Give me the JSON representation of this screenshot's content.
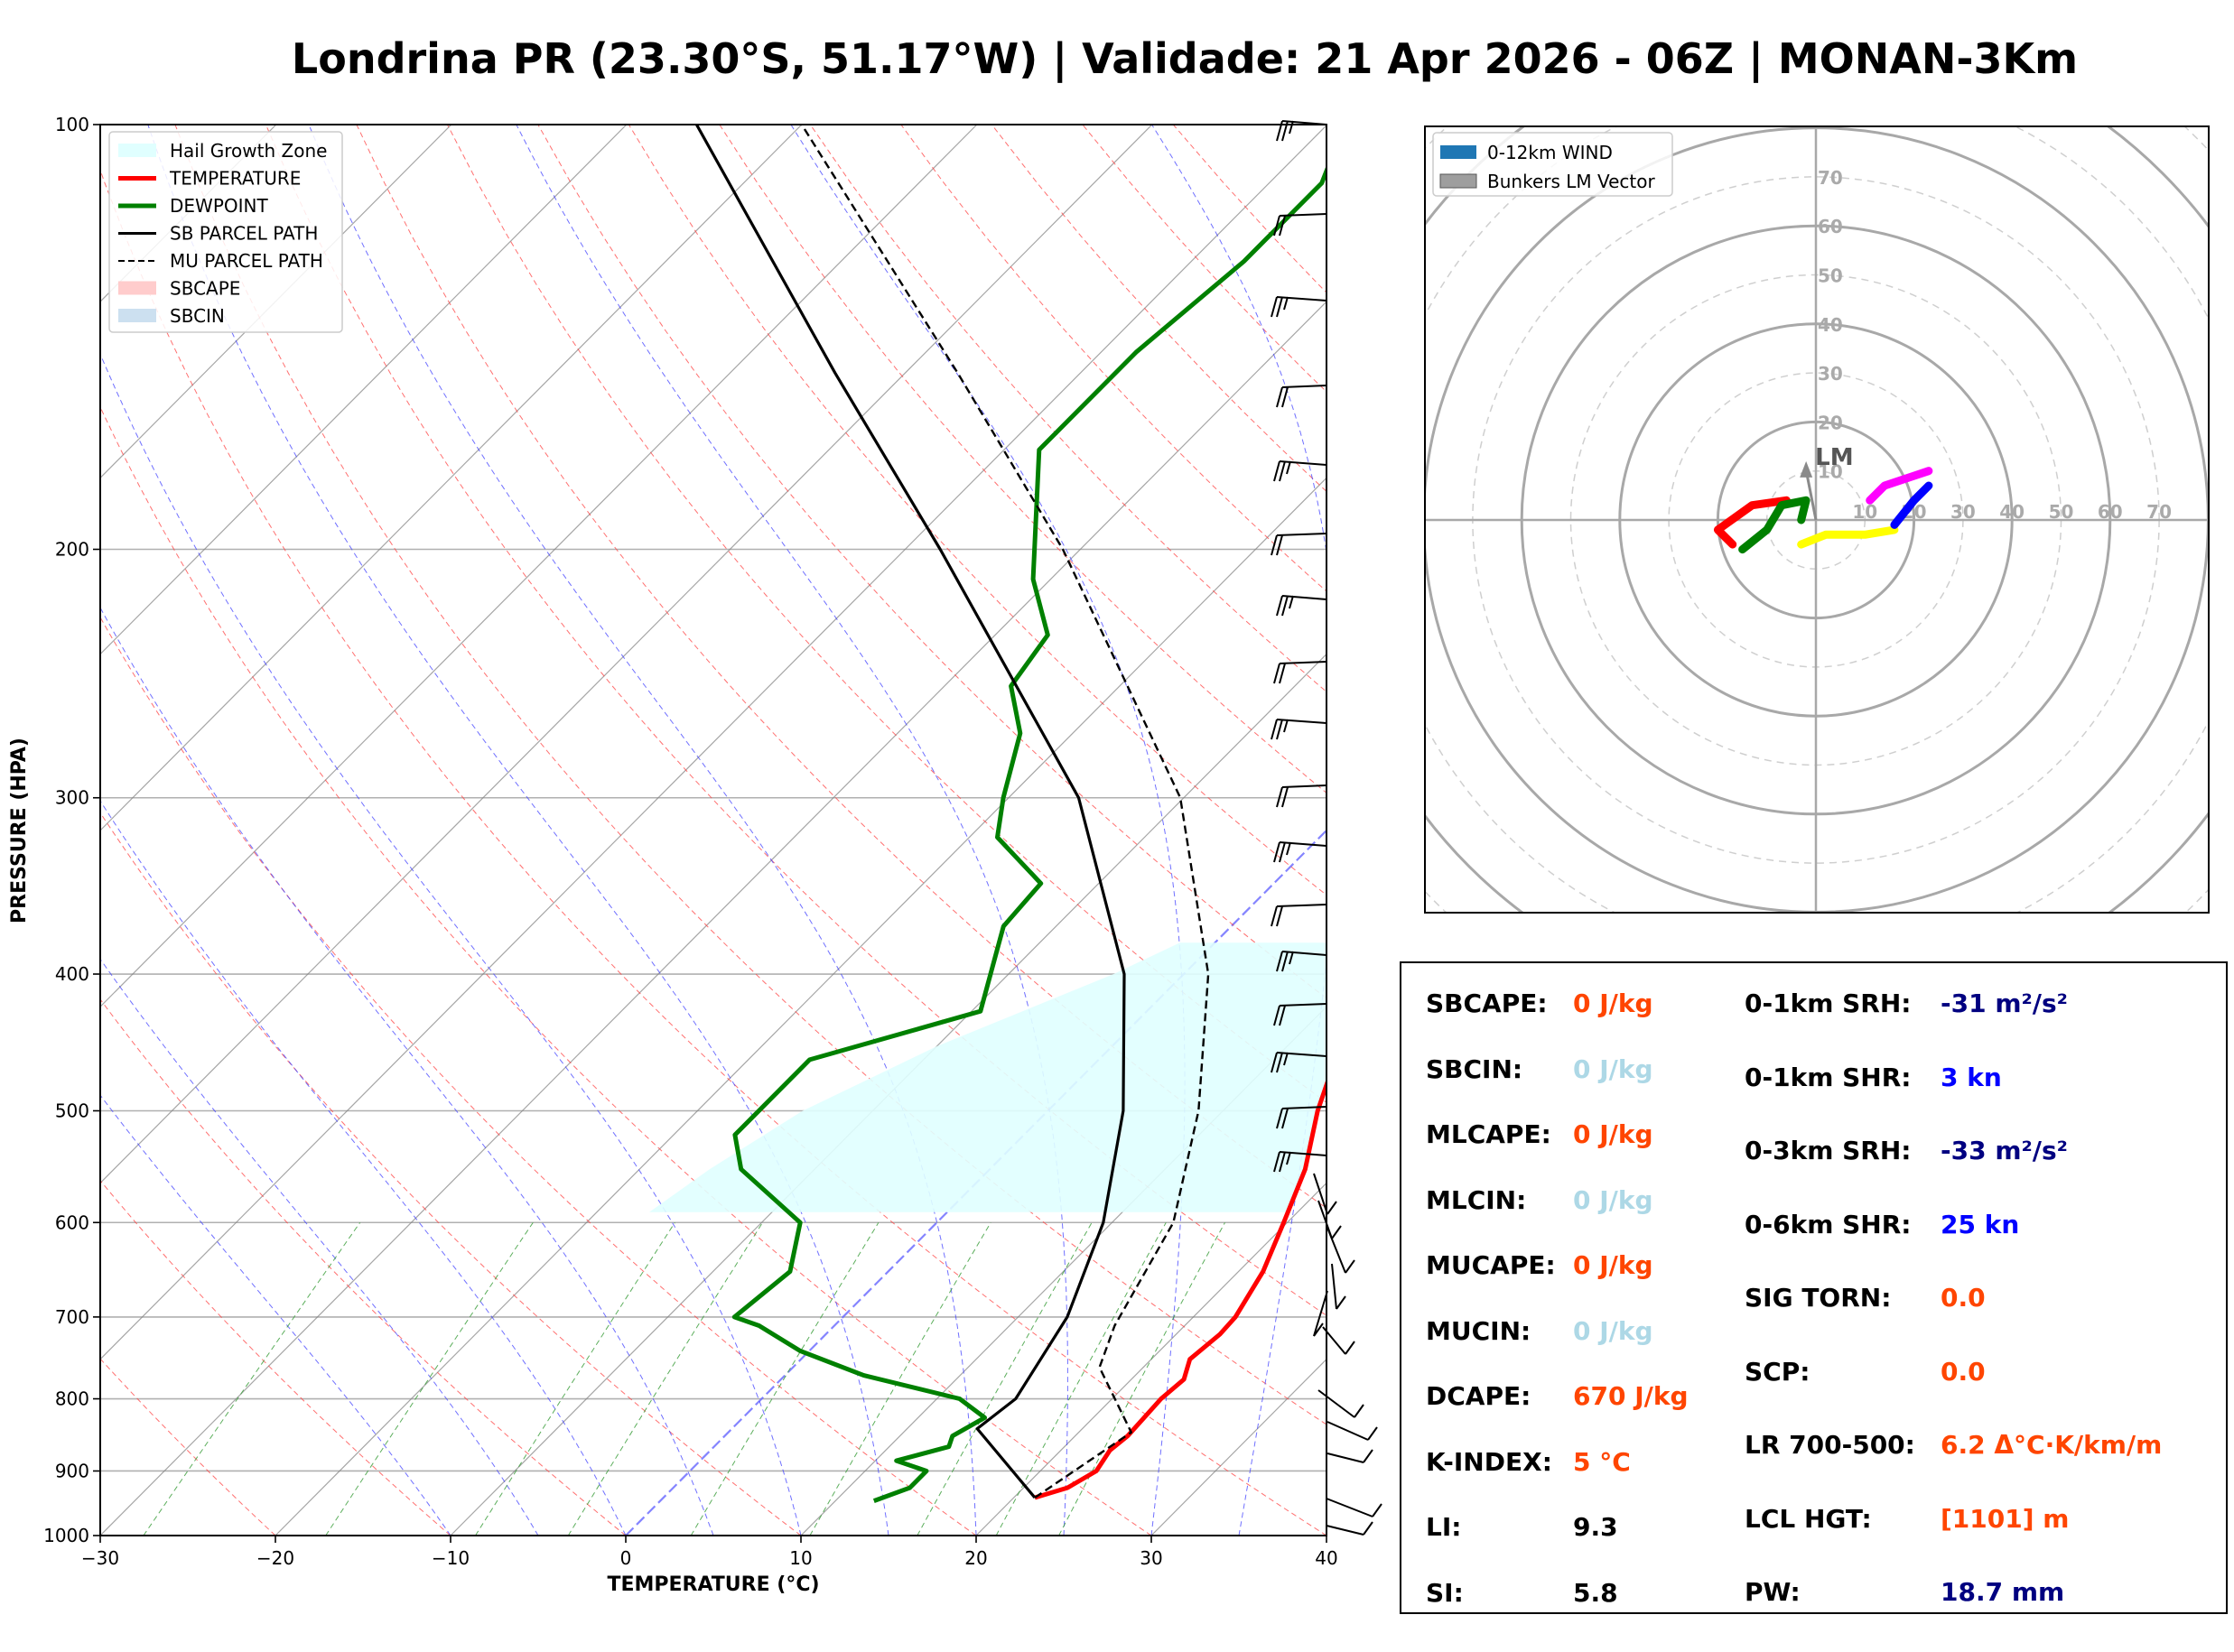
{
  "title": "Londrina PR (23.30°S, 51.17°W) | Validade: 21 Apr 2026 - 06Z | MONAN-3Km",
  "chart_data": [
    {
      "type": "line",
      "subtype": "skew-T log-P",
      "xlabel": "TEMPERATURE (°C)",
      "ylabel": "PRESSURE (HPA)",
      "xlim": [
        -30,
        40
      ],
      "ylim": [
        1000,
        100
      ],
      "y_scale": "log",
      "x_ticks": [
        "−30",
        "−20",
        "−10",
        "0",
        "10",
        "20",
        "30",
        "40"
      ],
      "y_ticks": [
        "1000",
        "900",
        "800",
        "700",
        "600",
        "500",
        "400",
        "300",
        "200",
        "100"
      ],
      "legend_position": "top-left",
      "legend": [
        "Hail Growth Zone",
        "TEMPERATURE",
        "DEWPOINT",
        "SB PARCEL PATH",
        "MU PARCEL PATH",
        "SBCAPE",
        "SBCIN"
      ],
      "colors": {
        "temperature": "#ff0000",
        "dewpoint": "#008000",
        "sb_parcel": "#000000",
        "mu_parcel": "#000000",
        "hail": "#e0ffff",
        "sbcape": "#ffcccc",
        "sbcin": "#cce0f0",
        "dry_adiabat": "#ff4040",
        "moist_adiabat": "#4040ff",
        "mixing_ratio": "#40a040",
        "isotherm": "#808080",
        "zero_isotherm": "#6666ff"
      },
      "series": [
        {
          "name": "TEMPERATURE",
          "points": [
            [
              940,
              21.2
            ],
            [
              925,
              22.5
            ],
            [
              900,
              23.2
            ],
            [
              870,
              22.8
            ],
            [
              850,
              23.0
            ],
            [
              800,
              22.8
            ],
            [
              775,
              23.0
            ],
            [
              750,
              22.2
            ],
            [
              720,
              22.5
            ],
            [
              700,
              22.4
            ],
            [
              650,
              21.4
            ],
            [
              600,
              19.8
            ],
            [
              550,
              18.0
            ],
            [
              500,
              15.4
            ],
            [
              450,
              13.0
            ],
            [
              400,
              10.3
            ],
            [
              350,
              7.3
            ],
            [
              300,
              3.5
            ],
            [
              250,
              -3.0
            ],
            [
              200,
              -10.0
            ],
            [
              175,
              -13.6
            ],
            [
              160,
              -16.0
            ],
            [
              140,
              -17.4
            ],
            [
              125,
              -17.0
            ],
            [
              110,
              -16.5
            ],
            [
              100,
              -15.0
            ]
          ]
        },
        {
          "name": "DEWPOINT",
          "points": [
            [
              945,
              12.2
            ],
            [
              925,
              13.5
            ],
            [
              900,
              13.5
            ],
            [
              885,
              11.2
            ],
            [
              865,
              13.4
            ],
            [
              850,
              13.0
            ],
            [
              825,
              13.8
            ],
            [
              800,
              11.3
            ],
            [
              770,
              4.5
            ],
            [
              740,
              -0.5
            ],
            [
              710,
              -4.3
            ],
            [
              700,
              -6.2
            ],
            [
              650,
              -5.6
            ],
            [
              600,
              -7.8
            ],
            [
              550,
              -14.2
            ],
            [
              520,
              -16.5
            ],
            [
              460,
              -16.5
            ],
            [
              425,
              -9.5
            ],
            [
              370,
              -13.0
            ],
            [
              345,
              -13.3
            ],
            [
              320,
              -18.4
            ],
            [
              300,
              -20.3
            ],
            [
              270,
              -23.0
            ],
            [
              250,
              -26.2
            ],
            [
              230,
              -27.0
            ],
            [
              210,
              -31.0
            ],
            [
              170,
              -38.0
            ],
            [
              145,
              -38.0
            ],
            [
              125,
              -37.0
            ],
            [
              110,
              -37.0
            ],
            [
              100,
              -39.0
            ]
          ]
        },
        {
          "name": "SB PARCEL PATH",
          "points": [
            [
              940,
              21.2
            ],
            [
              840,
              14.0
            ],
            [
              800,
              14.5
            ],
            [
              700,
              12.8
            ],
            [
              600,
              9.5
            ],
            [
              500,
              4.3
            ],
            [
              400,
              -3.4
            ],
            [
              300,
              -16.0
            ],
            [
              200,
              -38.0
            ],
            [
              150,
              -54.0
            ],
            [
              100,
              -76.0
            ]
          ]
        },
        {
          "name": "MU PARCEL PATH",
          "points": [
            [
              940,
              21.2
            ],
            [
              845,
              23.0
            ],
            [
              760,
              17.5
            ],
            [
              710,
              16.0
            ],
            [
              600,
              13.5
            ],
            [
              500,
              8.6
            ],
            [
              400,
              1.4
            ],
            [
              300,
              -10.2
            ],
            [
              200,
              -31.0
            ],
            [
              150,
              -47.0
            ],
            [
              100,
              -70.0
            ]
          ]
        }
      ],
      "hail_zone": {
        "top_hpa": 380,
        "bottom_hpa": 590,
        "left": [
          [
            380,
            -2.0
          ],
          [
            400,
            -4.0
          ],
          [
            450,
            -10.0
          ],
          [
            500,
            -14.0
          ],
          [
            550,
            -16.0
          ],
          [
            590,
            -17.0
          ]
        ],
        "right": [
          [
            380,
            10.3
          ],
          [
            400,
            10.3
          ],
          [
            450,
            13.0
          ],
          [
            500,
            15.4
          ],
          [
            550,
            18.0
          ],
          [
            590,
            19.5
          ]
        ]
      }
    },
    {
      "type": "scatter",
      "subtype": "hodograph",
      "legend_position": "top-left",
      "legend": [
        "0-12km WIND",
        "Bunkers LM Vector"
      ],
      "legend_colors": [
        "#1f77b4",
        "#9e9e9e"
      ],
      "ring_labels": [
        "10",
        "20",
        "30",
        "40",
        "50",
        "60",
        "70"
      ],
      "marker_label": "LM",
      "bunkers_lm": [
        -2,
        12
      ],
      "segments": [
        {
          "color": "#ff0000",
          "points": [
            [
              -17,
              -5
            ],
            [
              -20,
              -2
            ],
            [
              -13,
              3
            ],
            [
              -6,
              4
            ]
          ]
        },
        {
          "color": "#008000",
          "points": [
            [
              -15,
              -6
            ],
            [
              -10,
              -2
            ],
            [
              -7,
              3
            ],
            [
              -2,
              4
            ],
            [
              -3,
              0
            ]
          ]
        },
        {
          "color": "#ffff00",
          "points": [
            [
              -3,
              -5
            ],
            [
              2,
              -3
            ],
            [
              10,
              -3
            ],
            [
              16,
              -2
            ]
          ]
        },
        {
          "color": "#0000ff",
          "points": [
            [
              16,
              -1
            ],
            [
              20,
              4
            ],
            [
              23,
              7
            ]
          ]
        },
        {
          "color": "#ff00ff",
          "points": [
            [
              11,
              4
            ],
            [
              14,
              7
            ],
            [
              20,
              9
            ],
            [
              23,
              10
            ]
          ]
        }
      ]
    }
  ],
  "params": {
    "left": [
      {
        "label": "SBCAPE:",
        "value": "0 J/kg",
        "color": "#ff4500"
      },
      {
        "label": "SBCIN:",
        "value": "0 J/kg",
        "color": "#add8e6"
      },
      {
        "label": "MLCAPE:",
        "value": "0 J/kg",
        "color": "#ff4500"
      },
      {
        "label": "MLCIN:",
        "value": "0 J/kg",
        "color": "#add8e6"
      },
      {
        "label": "MUCAPE:",
        "value": "0 J/kg",
        "color": "#ff4500"
      },
      {
        "label": "MUCIN:",
        "value": "0 J/kg",
        "color": "#add8e6"
      },
      {
        "label": "DCAPE:",
        "value": "670 J/kg",
        "color": "#ff4500"
      },
      {
        "label": "K-INDEX:",
        "value": "5 °C",
        "color": "#ff4500"
      },
      {
        "label": "LI:",
        "value": "9.3",
        "color": "#000000"
      },
      {
        "label": "SI:",
        "value": "5.8",
        "color": "#000000"
      }
    ],
    "right": [
      {
        "label": "0-1km SRH:",
        "value": "-31 m²/s²",
        "color": "#000080"
      },
      {
        "label": "0-1km SHR:",
        "value": "3 kn",
        "color": "#0000ff"
      },
      {
        "label": "0-3km SRH:",
        "value": "-33 m²/s²",
        "color": "#000080"
      },
      {
        "label": "0-6km SHR:",
        "value": "25 kn",
        "color": "#0000ff"
      },
      {
        "label": "SIG TORN:",
        "value": "0.0",
        "color": "#ff4500"
      },
      {
        "label": "SCP:",
        "value": "0.0",
        "color": "#ff4500"
      },
      {
        "label": "LR 700-500:",
        "value": "6.2 Δ°C·K/km/m",
        "color": "#ff4500"
      },
      {
        "label": "LCL HGT:",
        "value": "[1101] m",
        "color": "#ff4500"
      },
      {
        "label": "PW:",
        "value": "18.7 mm",
        "color": "#000080"
      }
    ]
  }
}
